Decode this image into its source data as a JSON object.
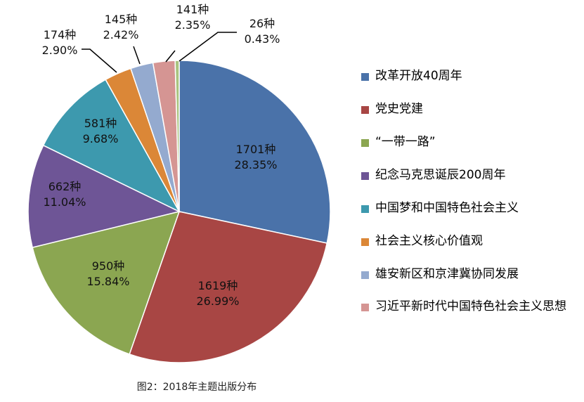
{
  "chart_data": {
    "type": "pie",
    "caption": "图2：2018年主题出版分布",
    "legend_position": "right",
    "slices": [
      {
        "label": "改革开放40周年",
        "count_label": "1701种",
        "percent_label": "28.35%",
        "value": 1701,
        "percent": 28.35,
        "color": "#4A72A9"
      },
      {
        "label": "党史党建",
        "count_label": "1619种",
        "percent_label": "26.99%",
        "value": 1619,
        "percent": 26.99,
        "color": "#A84644"
      },
      {
        "label": "“一带一路”",
        "count_label": "950种",
        "percent_label": "15.84%",
        "value": 950,
        "percent": 15.84,
        "color": "#8BA651"
      },
      {
        "label": "纪念马克思诞辰200周年",
        "count_label": "662种",
        "percent_label": "11.04%",
        "value": 662,
        "percent": 11.04,
        "color": "#6E5596"
      },
      {
        "label": "中国梦和中国特色社会主义",
        "count_label": "581种",
        "percent_label": "9.68%",
        "value": 581,
        "percent": 9.68,
        "color": "#3D99AE"
      },
      {
        "label": "社会主义核心价值观",
        "count_label": "174种",
        "percent_label": "2.90%",
        "value": 174,
        "percent": 2.9,
        "color": "#DB8737"
      },
      {
        "label": "雄安新区和京津冀协同发展",
        "count_label": "145种",
        "percent_label": "2.42%",
        "value": 145,
        "percent": 2.42,
        "color": "#94AACF"
      },
      {
        "label": "习近平新时代中国特色社会主义思想",
        "count_label": "141种",
        "percent_label": "2.35%",
        "value": 141,
        "percent": 2.35,
        "color": "#D59593"
      },
      {
        "label": "",
        "count_label": "26种",
        "percent_label": "0.43%",
        "value": 26,
        "percent": 0.43,
        "color": "#A9C47F"
      }
    ]
  }
}
